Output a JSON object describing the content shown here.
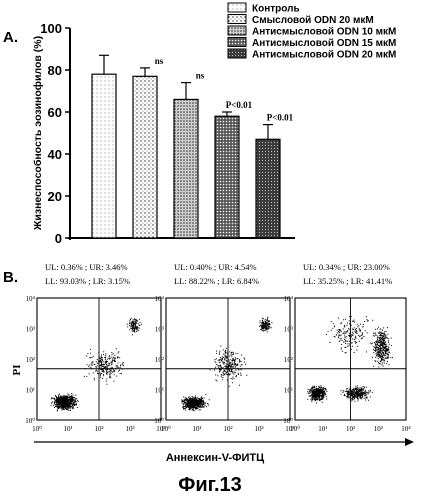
{
  "panel_a": {
    "label": "A.",
    "chart_data": {
      "type": "bar",
      "categories": [
        "Контроль",
        "Смысловой ODN 20 мкМ",
        "Антисмысловой ODN 10 мкМ",
        "Антисмысловой ODN 15 мкМ",
        "Антисмысловой ODN 20 мкМ"
      ],
      "values": [
        78,
        77,
        66,
        58,
        47
      ],
      "errors": [
        9,
        4,
        8,
        2,
        7
      ],
      "annotations": [
        "",
        "ns",
        "ns",
        "P<0.01",
        "P<0.01"
      ],
      "ylabel": "Жизнеспособность эозинофилов (%)",
      "ylim": [
        0,
        100
      ],
      "yticks": [
        "0",
        "20",
        "40",
        "60",
        "80",
        "100"
      ],
      "legend": [
        "Контроль",
        "Смысловой ODN 20 мкМ",
        "Антисмысловой ODN 10 мкМ",
        "Антисмысловой ODN 15 мкМ",
        "Антисмысловой ODN 20 мкМ"
      ],
      "legend_position": "top-right"
    }
  },
  "panel_b": {
    "label": "B.",
    "xlabel": "Аннексин-V-ФИТЦ",
    "ylabel": "PI",
    "plots": [
      {
        "line1": "UL: 0.36% ; UR: 3.46%",
        "line2": "LL: 93.03% ; LR: 3.15%"
      },
      {
        "line1": "UL: 0.40% ; UR: 4.54%",
        "line2": "LL: 88.22% ; LR: 6.84%"
      },
      {
        "line1": "UL: 0.34% ; UR: 23.00%",
        "line2": "LL: 35.25% ; LR: 41.41%"
      }
    ],
    "xticks": [
      "10⁰",
      "10¹",
      "10²",
      "10³",
      "10⁴"
    ],
    "yticks": [
      "10⁰",
      "10¹",
      "10²",
      "10³",
      "10⁴"
    ]
  },
  "caption": "Фиг.13"
}
